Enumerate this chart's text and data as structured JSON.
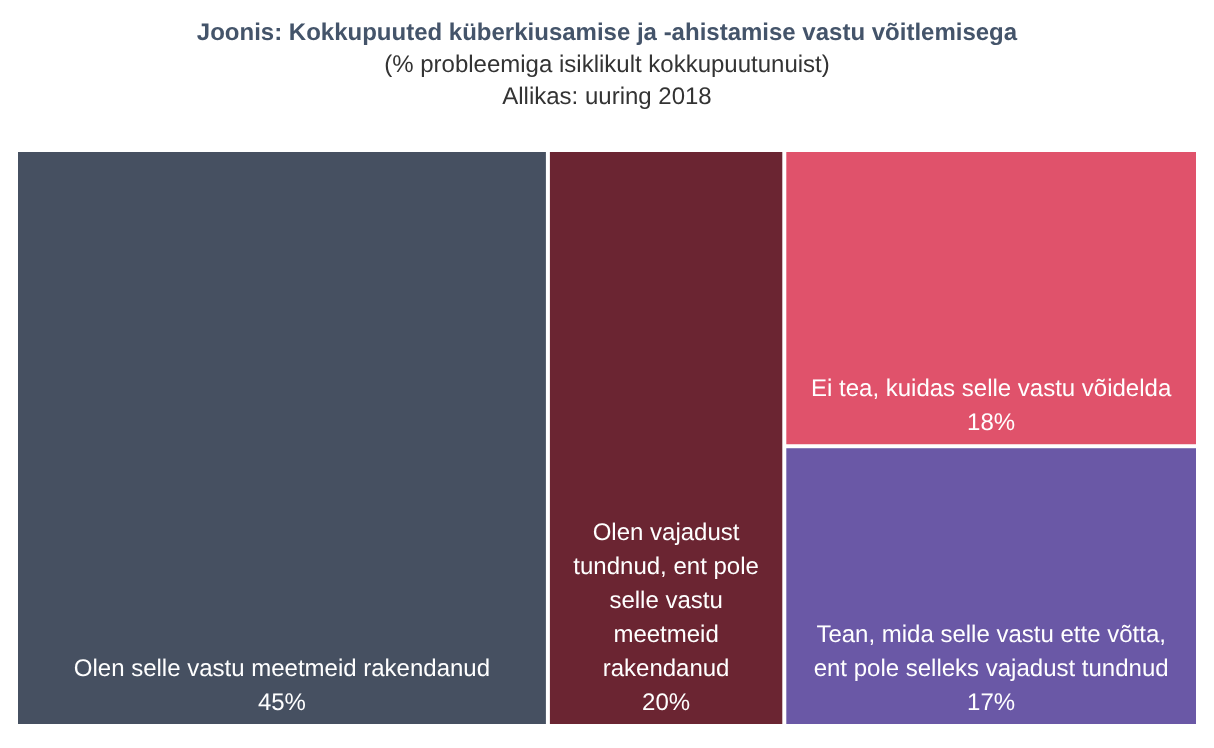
{
  "chart_data": {
    "type": "other",
    "title": "Joonis: Kokkupuuted küberkiusamise ja -ahistamise vastu võitlemisega",
    "subtitle": "(% probleemiga  isiklikult kokkupuutunuist)",
    "annotations": [
      "Allikas: uuring 2018"
    ],
    "categories": [
      "Olen selle vastu meetmeid rakendanud",
      "Olen vajadust tundnud, ent pole selle vastu meetmeid rakendanud",
      "Ei tea, kuidas selle vastu võidelda",
      "Tean, mida selle vastu ette võtta, ent pole selleks vajadust tundnud"
    ],
    "values": [
      45,
      20,
      18,
      17
    ],
    "value_labels": [
      "45%",
      "20%",
      "18%",
      "17%"
    ],
    "colors": [
      "#465061",
      "#6b2532",
      "#e0526b",
      "#6a58a6"
    ]
  }
}
